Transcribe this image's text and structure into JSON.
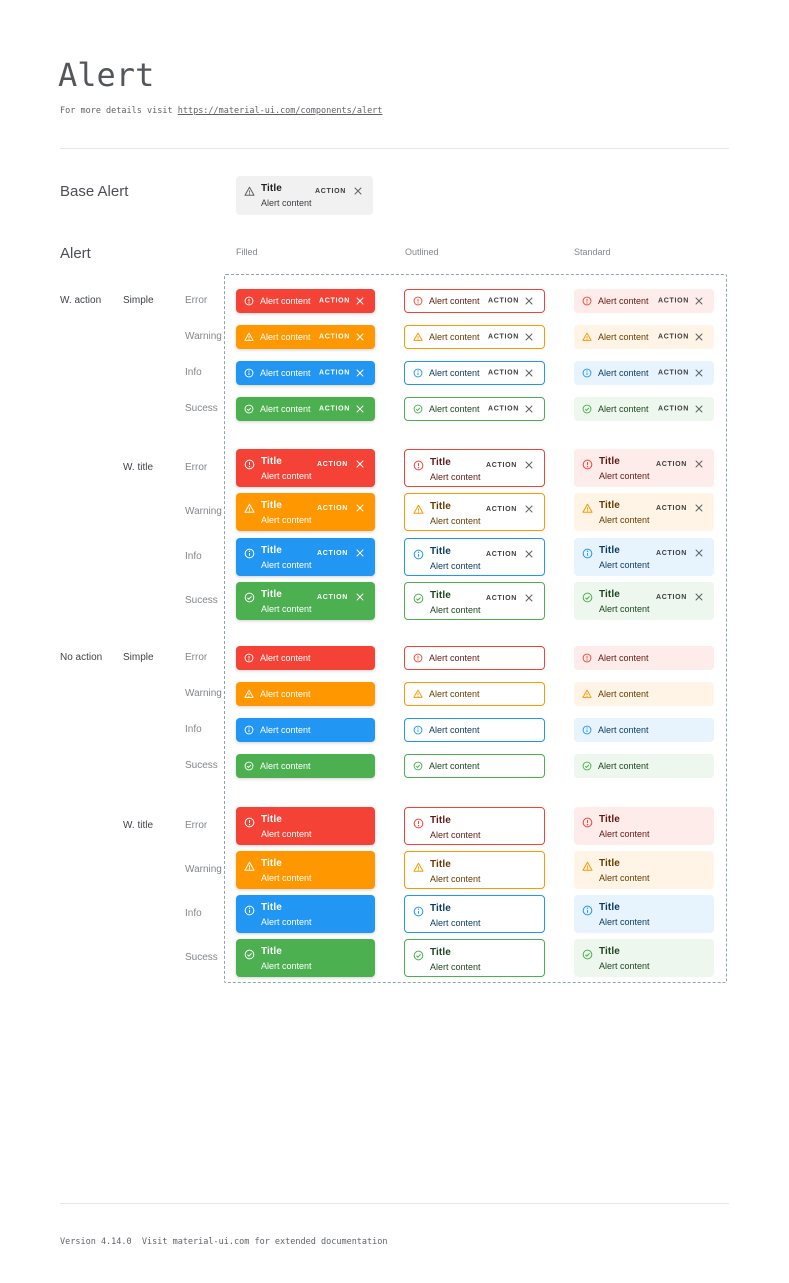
{
  "page": {
    "title": "Alert",
    "subtitle_prefix": "For more details visit",
    "subtitle_link": "https://material-ui.com/components/alert",
    "footer_text": "Version 4.14.0  Visit material-ui.com for extended documentation"
  },
  "base_alert_section": {
    "heading": "Base Alert",
    "alert": {
      "title": "Title",
      "content": "Alert content",
      "action": "ACTION"
    }
  },
  "alert_section": {
    "heading": "Alert",
    "variants": [
      "Filled",
      "Outlined",
      "Standard"
    ],
    "groups": [
      {
        "label": "W. action",
        "with_action": true,
        "rows": [
          {
            "label": "Simple",
            "with_title": false,
            "severities": [
              "Error",
              "Warning",
              "Info",
              "Sucess"
            ]
          },
          {
            "label": "W. title",
            "with_title": true,
            "severities": [
              "Error",
              "Warning",
              "Info",
              "Sucess"
            ]
          }
        ]
      },
      {
        "label": "No action",
        "with_action": false,
        "rows": [
          {
            "label": "Simple",
            "with_title": false,
            "severities": [
              "Error",
              "Warning",
              "Info",
              "Sucess"
            ]
          },
          {
            "label": "W. title",
            "with_title": true,
            "severities": [
              "Error",
              "Warning",
              "Info",
              "Sucess"
            ]
          }
        ]
      }
    ],
    "alert_strings": {
      "title": "Title",
      "content": "Alert content",
      "action": "ACTION"
    },
    "severity_keys": {
      "Error": "error",
      "Warning": "warning",
      "Info": "info",
      "Sucess": "success"
    }
  },
  "icon_names": {
    "error": "error-outline-icon",
    "warning": "warning-triangle-icon",
    "info": "info-outline-icon",
    "success": "check-circle-icon",
    "base": "warning-triangle-icon",
    "close": "close-icon"
  },
  "colors": {
    "error": {
      "main": "#f44336",
      "standard_bg": "#fdecea",
      "dark_text": "#611a15"
    },
    "warning": {
      "main": "#ff9800",
      "standard_bg": "#fff4e5",
      "dark_text": "#663c00"
    },
    "info": {
      "main": "#2196f3",
      "standard_bg": "#e8f4fd",
      "dark_text": "#0d3c61"
    },
    "success": {
      "main": "#4caf50",
      "standard_bg": "#edf7ed",
      "dark_text": "#1e4620"
    },
    "base_alert": {
      "bg": "#f1f1f1",
      "icon": "#5f6368",
      "title": "#212121",
      "content": "#3c4043"
    },
    "filled_text": "#ffffff",
    "neutral_action": "#3c3c3c",
    "neutral_close": "#5f6368",
    "dashed_border": "#90a4ae",
    "divider": "#e7e7e7"
  }
}
